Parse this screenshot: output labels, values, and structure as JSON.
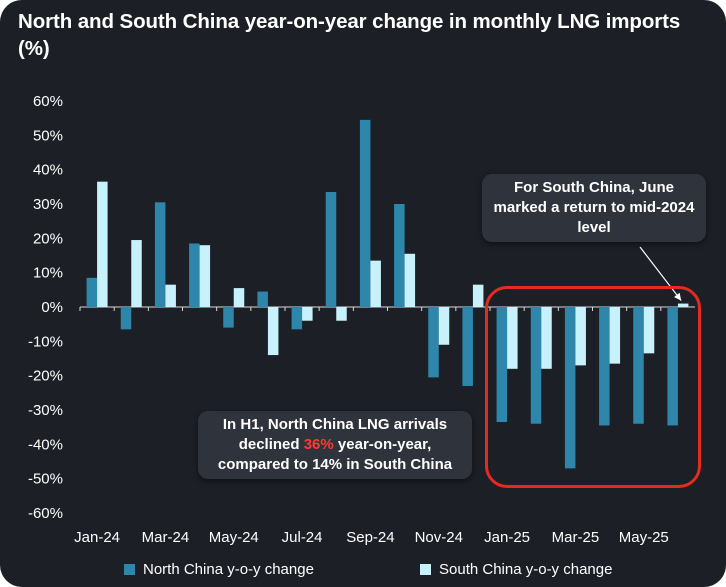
{
  "title": "North and South China year-on-year change in monthly LNG imports (%)",
  "colors": {
    "north": "#2e86ab",
    "south": "#c8f2fb",
    "background": "#1c1f26",
    "highlight": "#e32b1f"
  },
  "annotation_h1": {
    "prefix": "In H1, North China LNG arrivals declined ",
    "highlight": "36%",
    "suffix": " year-on-year, compared to 14% in South China"
  },
  "annotation_june": "For South China, June marked a return to mid-2024 level",
  "chart_data": {
    "type": "bar",
    "categories": [
      "Jan-24",
      "Feb-24",
      "Mar-24",
      "Apr-24",
      "May-24",
      "Jun-24",
      "Jul-24",
      "Aug-24",
      "Sep-24",
      "Oct-24",
      "Nov-24",
      "Dec-24",
      "Jan-25",
      "Feb-25",
      "Mar-25",
      "Apr-25",
      "May-25",
      "Jun-25"
    ],
    "x_tick_labels": [
      "Jan-24",
      "Mar-24",
      "May-24",
      "Jul-24",
      "Sep-24",
      "Nov-24",
      "Jan-25",
      "Mar-25",
      "May-25"
    ],
    "series": [
      {
        "name": "North China y-o-y change",
        "values": [
          8.5,
          -6.5,
          30.5,
          18.5,
          -6,
          4.5,
          -6.5,
          33.5,
          54.5,
          30,
          -20.5,
          -23,
          -33.5,
          -34,
          -47,
          -34.5,
          -34,
          -34.5
        ]
      },
      {
        "name": "South China y-o-y change",
        "values": [
          36.5,
          19.5,
          6.5,
          18,
          5.5,
          -14,
          -4,
          -4,
          13.5,
          15.5,
          -11,
          6.5,
          -18,
          -18,
          -17,
          -16.5,
          -13.5,
          1
        ]
      }
    ],
    "ylim": [
      -60,
      60
    ],
    "y_ticks": [
      60,
      50,
      40,
      30,
      20,
      10,
      0,
      -10,
      -20,
      -30,
      -40,
      -50,
      -60
    ],
    "y_tick_labels": [
      "60%",
      "50%",
      "40%",
      "30%",
      "20%",
      "10%",
      "0%",
      "-10%",
      "-20%",
      "-30%",
      "-40%",
      "-50%",
      "-60%"
    ],
    "grid": false,
    "legend_position": "bottom"
  }
}
